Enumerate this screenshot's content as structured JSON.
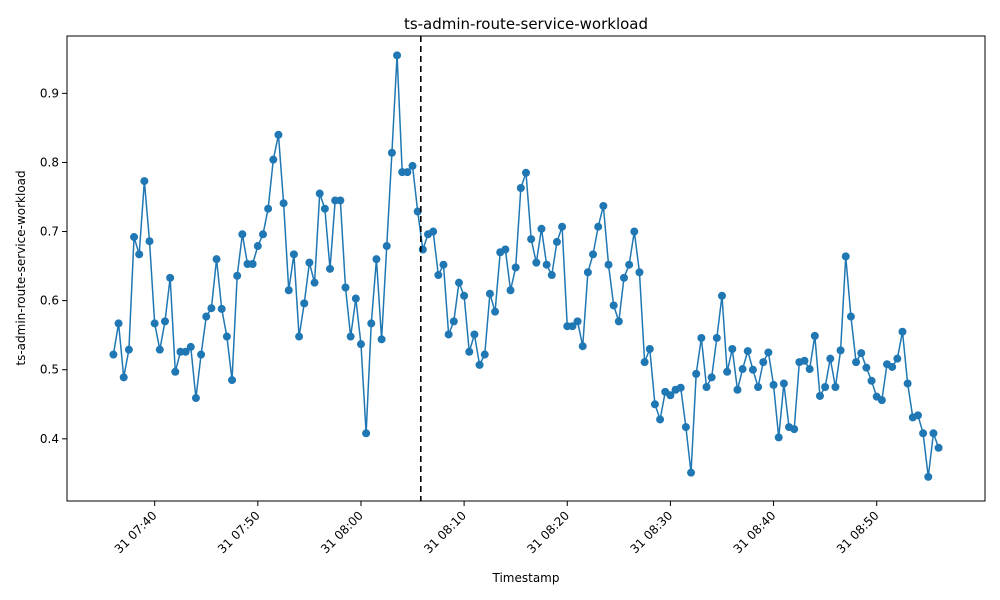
{
  "chart_data": {
    "type": "line",
    "title": "ts-admin-route-service-workload",
    "xlabel": "Timestamp",
    "ylabel": "ts-admin-route-service-workload",
    "x_start": "07:36",
    "x_step_minutes": 0.5,
    "xlim_minutes": [
      -4.5,
      84.5
    ],
    "ylim": [
      0.31,
      0.983
    ],
    "x_ticks": [
      {
        "label": "31 07:40",
        "minute": 4
      },
      {
        "label": "31 07:50",
        "minute": 14
      },
      {
        "label": "31 08:00",
        "minute": 24
      },
      {
        "label": "31 08:10",
        "minute": 34
      },
      {
        "label": "31 08:20",
        "minute": 44
      },
      {
        "label": "31 08:30",
        "minute": 54
      },
      {
        "label": "31 08:40",
        "minute": 64
      },
      {
        "label": "31 08:50",
        "minute": 74
      }
    ],
    "y_ticks": [
      {
        "label": "0.4",
        "value": 0.4
      },
      {
        "label": "0.5",
        "value": 0.5
      },
      {
        "label": "0.6",
        "value": 0.6
      },
      {
        "label": "0.7",
        "value": 0.7
      },
      {
        "label": "0.8",
        "value": 0.8
      },
      {
        "label": "0.9",
        "value": 0.9
      }
    ],
    "vertical_marker_minute": 29.8,
    "grid": false,
    "series": [
      {
        "color": "#1f77b4",
        "values": [
          0.522,
          0.567,
          0.489,
          0.529,
          0.692,
          0.667,
          0.773,
          0.686,
          0.567,
          0.529,
          0.57,
          0.633,
          0.497,
          0.526,
          0.526,
          0.533,
          0.459,
          0.522,
          0.577,
          0.589,
          0.66,
          0.588,
          0.548,
          0.485,
          0.636,
          0.696,
          0.653,
          0.653,
          0.679,
          0.696,
          0.733,
          0.804,
          0.84,
          0.741,
          0.615,
          0.667,
          0.548,
          0.596,
          0.655,
          0.626,
          0.755,
          0.733,
          0.646,
          0.745,
          0.745,
          0.619,
          0.548,
          0.603,
          0.537,
          0.408,
          0.567,
          0.66,
          0.544,
          0.679,
          0.814,
          0.955,
          0.786,
          0.786,
          0.795,
          0.729,
          0.674,
          0.696,
          0.7,
          0.637,
          0.652,
          0.551,
          0.57,
          0.626,
          0.607,
          0.526,
          0.551,
          0.507,
          0.522,
          0.61,
          0.584,
          0.67,
          0.674,
          0.615,
          0.648,
          0.763,
          0.785,
          0.689,
          0.655,
          0.704,
          0.652,
          0.637,
          0.685,
          0.707,
          0.563,
          0.563,
          0.57,
          0.534,
          0.641,
          0.667,
          0.707,
          0.737,
          0.652,
          0.593,
          0.57,
          0.633,
          0.652,
          0.7,
          0.641,
          0.511,
          0.53,
          0.45,
          0.428,
          0.468,
          0.463,
          0.471,
          0.474,
          0.417,
          0.351,
          0.494,
          0.546,
          0.475,
          0.489,
          0.546,
          0.607,
          0.497,
          0.53,
          0.471,
          0.501,
          0.527,
          0.5,
          0.475,
          0.511,
          0.525,
          0.478,
          0.402,
          0.48,
          0.417,
          0.414,
          0.511,
          0.513,
          0.501,
          0.549,
          0.462,
          0.475,
          0.516,
          0.475,
          0.528,
          0.664,
          0.577,
          0.511,
          0.524,
          0.503,
          0.484,
          0.461,
          0.456,
          0.508,
          0.504,
          0.516,
          0.555,
          0.48,
          0.431,
          0.434,
          0.408,
          0.345,
          0.408,
          0.387
        ]
      }
    ]
  }
}
